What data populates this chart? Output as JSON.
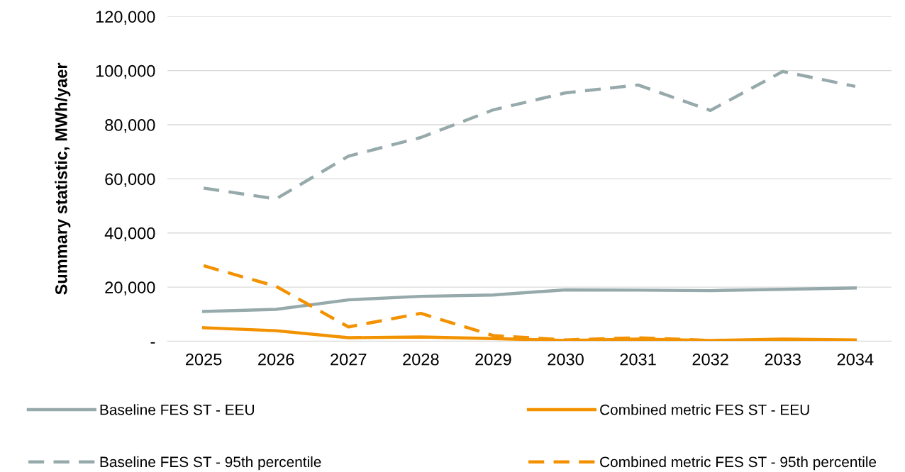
{
  "chart_data": {
    "type": "line",
    "ylabel": "Summary statistic, MWh/yaer",
    "categories": [
      "2025",
      "2026",
      "2027",
      "2028",
      "2029",
      "2030",
      "2031",
      "2032",
      "2033",
      "2034"
    ],
    "series": [
      {
        "name": "Baseline FES ST - EEU",
        "color": "#97aaab",
        "line_style": "solid",
        "values": [
          11000,
          11800,
          15300,
          16600,
          17100,
          19000,
          18900,
          18700,
          19200,
          19700
        ]
      },
      {
        "name": "Combined metric FES ST - EEU",
        "color": "#f39200",
        "line_style": "solid",
        "values": [
          5000,
          3900,
          1300,
          1600,
          1000,
          300,
          800,
          300,
          800,
          500
        ]
      },
      {
        "name": "Baseline FES ST - 95th percentile",
        "color": "#97aaab",
        "line_style": "dashed",
        "values": [
          56600,
          52600,
          68400,
          75300,
          85500,
          91800,
          94700,
          85300,
          99700,
          94200
        ]
      },
      {
        "name": "Combined metric FES ST - 95th percentile",
        "color": "#f39200",
        "line_style": "dashed",
        "values": [
          27900,
          20300,
          5300,
          10300,
          2100,
          500,
          1300,
          300,
          0,
          0
        ]
      }
    ],
    "ylim": [
      0,
      120000
    ],
    "yticks": [
      {
        "value": 0,
        "label": "-"
      },
      {
        "value": 20000,
        "label": "20,000"
      },
      {
        "value": 40000,
        "label": "40,000"
      },
      {
        "value": 60000,
        "label": "60,000"
      },
      {
        "value": 80000,
        "label": "80,000"
      },
      {
        "value": 100000,
        "label": "100,000"
      },
      {
        "value": 120000,
        "label": "120,000"
      }
    ],
    "grid": "y",
    "legend": "bottom",
    "marker": "none"
  }
}
